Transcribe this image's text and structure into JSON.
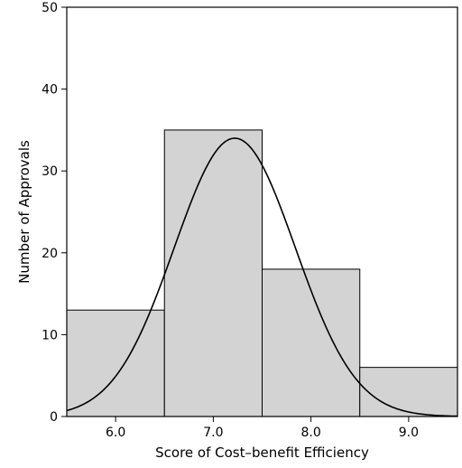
{
  "chart_data": {
    "type": "bar",
    "bins": [
      {
        "x0": 5.5,
        "x1": 6.5,
        "count": 13
      },
      {
        "x0": 6.5,
        "x1": 7.5,
        "count": 35
      },
      {
        "x0": 7.5,
        "x1": 8.5,
        "count": 18
      },
      {
        "x0": 8.5,
        "x1": 9.5,
        "count": 6
      }
    ],
    "xlim": [
      5.5,
      9.5
    ],
    "ylim": [
      0,
      50
    ],
    "x_ticks": [
      "6.0",
      "7.0",
      "8.0",
      "9.0"
    ],
    "x_tick_values": [
      6.0,
      7.0,
      8.0,
      9.0
    ],
    "y_ticks": [
      "0",
      "10",
      "20",
      "30",
      "40",
      "50"
    ],
    "y_tick_values": [
      0,
      10,
      20,
      30,
      40,
      50
    ],
    "xlabel": "Score of Cost–benefit Efficiency",
    "ylabel": "Number of Approvals",
    "fitted_curve": {
      "type": "normal",
      "peak_x": 7.22,
      "peak_y": 34,
      "sigma": 0.62
    },
    "bar_color": "#d3d3d3",
    "edge_color": "#000000",
    "grid": false
  }
}
